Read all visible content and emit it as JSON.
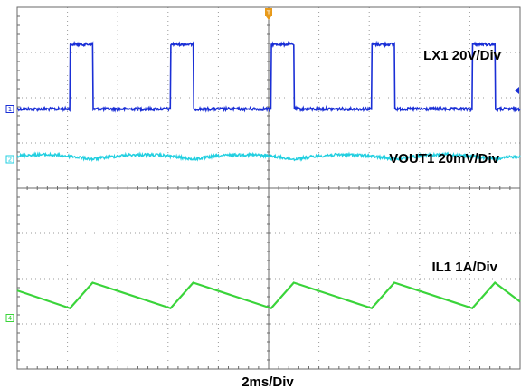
{
  "chart_data": {
    "type": "line",
    "grid": true,
    "x_divisions": 10,
    "y_divisions": 8,
    "xlabel": "2ms/Div",
    "x_unit_per_div": "2ms",
    "trigger_marker": "T",
    "channels": [
      {
        "id": "1",
        "name": "LX1 20V/Div",
        "color": "#1a2fd6",
        "ground_div": 2.25,
        "shape": "pulse",
        "pulses": [
          {
            "start": 1.05,
            "end": 1.5
          },
          {
            "start": 3.05,
            "end": 3.5
          },
          {
            "start": 5.05,
            "end": 5.5
          },
          {
            "start": 7.05,
            "end": 7.5
          },
          {
            "start": 9.05,
            "end": 9.5
          }
        ],
        "high_div": 0.82
      },
      {
        "id": "2",
        "name": "VOUT1 20mV/Div",
        "color": "#22cfe0",
        "ground_div": 3.3,
        "shape": "ripple"
      },
      {
        "id": "4",
        "name": "IL1 1A/Div",
        "color": "#3ad43a",
        "ground_div": 6.6,
        "shape": "triangle",
        "valley_times": [
          1.05,
          3.05,
          5.05,
          7.05,
          9.05
        ],
        "peak_times": [
          1.5,
          3.5,
          5.5,
          7.5,
          9.5
        ]
      }
    ]
  }
}
